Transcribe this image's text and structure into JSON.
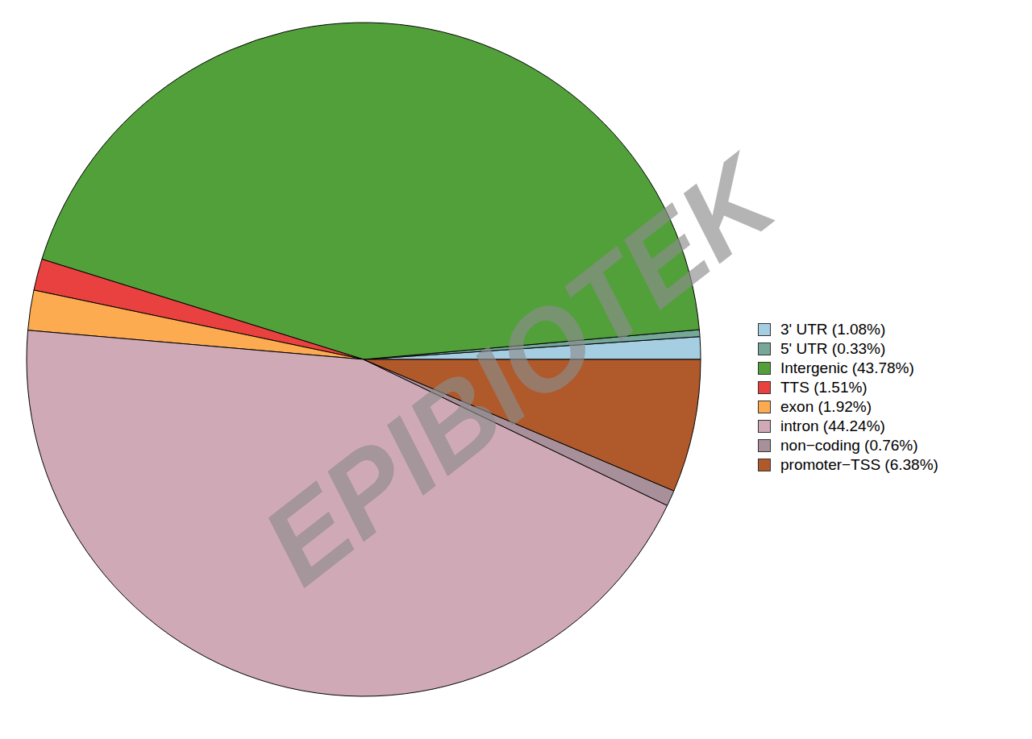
{
  "chart_data": {
    "type": "pie",
    "categories": [
      "3' UTR (1.08%)",
      "5' UTR (0.33%)",
      "Intergenic (43.78%)",
      "TTS (1.51%)",
      "exon (1.92%)",
      "intron (44.24%)",
      "non−coding (0.76%)",
      "promoter−TSS (6.38%)"
    ],
    "values": [
      1.08,
      0.33,
      43.78,
      1.51,
      1.92,
      44.24,
      0.76,
      6.38
    ],
    "colors": [
      "#a6cee3",
      "#76a89a",
      "#52a03a",
      "#e8413f",
      "#fcab50",
      "#d0a9b7",
      "#a8909a",
      "#b0592a"
    ],
    "legend": "right",
    "annotations": [
      "EPIBIOTEK"
    ]
  }
}
